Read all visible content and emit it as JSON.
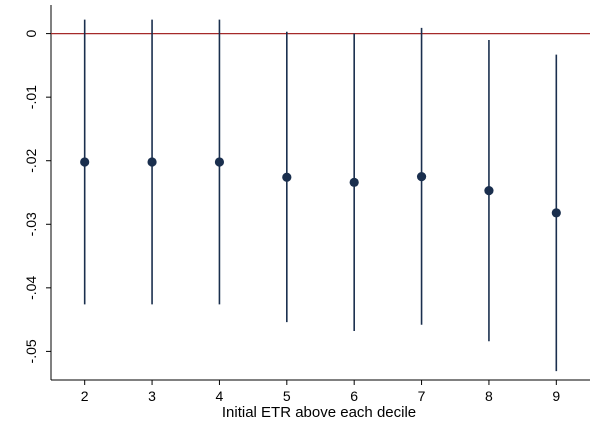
{
  "chart_data": {
    "type": "scatter",
    "subtype": "coefficient-plot-with-confidence-intervals",
    "title": "",
    "xlabel": "Initial ETR above each decile",
    "ylabel": "",
    "x": [
      2,
      3,
      4,
      5,
      6,
      7,
      8,
      9
    ],
    "estimate": [
      -0.0202,
      -0.0202,
      -0.0202,
      -0.0226,
      -0.0234,
      -0.0225,
      -0.0247,
      -0.0282
    ],
    "ci_lower": [
      -0.0426,
      -0.0426,
      -0.0426,
      -0.0454,
      -0.0468,
      -0.0458,
      -0.0484,
      -0.0531
    ],
    "ci_upper": [
      0.0022,
      0.0022,
      0.0022,
      0.0003,
      0.0,
      0.0009,
      -0.001,
      -0.0033
    ],
    "x_ticks": [
      "2",
      "3",
      "4",
      "5",
      "6",
      "7",
      "8",
      "9"
    ],
    "y_ticks": [
      0,
      -0.01,
      -0.02,
      -0.03,
      -0.04,
      -0.05
    ],
    "y_tick_labels": [
      "0",
      "-.01",
      "-.02",
      "-.03",
      "-.04",
      "-.05"
    ],
    "xlim": [
      1.5,
      9.5
    ],
    "ylim": [
      -0.0545,
      0.0045
    ],
    "reference_line": 0,
    "grid": false,
    "colors": {
      "marker": "#1a2f4e",
      "ci_line": "#1a2f4e",
      "reference_line": "#a52a2a",
      "axis": "#000000"
    }
  }
}
